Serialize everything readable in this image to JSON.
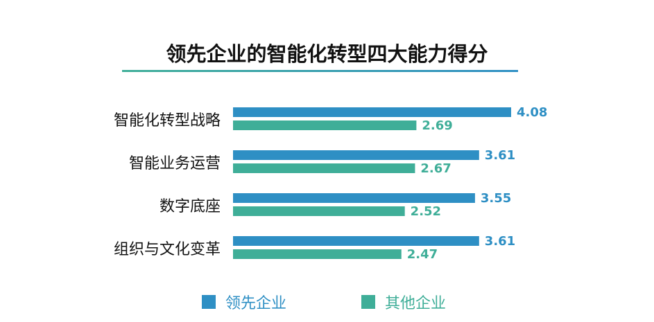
{
  "chart_data": {
    "type": "bar",
    "orientation": "horizontal",
    "title": "领先企业的智能化转型四大能力得分",
    "categories": [
      "智能化转型战略",
      "智能业务运营",
      "数字底座",
      "组织与文化变革"
    ],
    "series": [
      {
        "name": "领先企业",
        "values": [
          4.08,
          3.61,
          3.55,
          3.61
        ],
        "color": "#2e8fc4"
      },
      {
        "name": "其他企业",
        "values": [
          2.69,
          2.67,
          2.52,
          2.47
        ],
        "color": "#3fae98"
      }
    ],
    "xlim": [
      0,
      4.08
    ],
    "grid": false,
    "legend": "bottom"
  }
}
